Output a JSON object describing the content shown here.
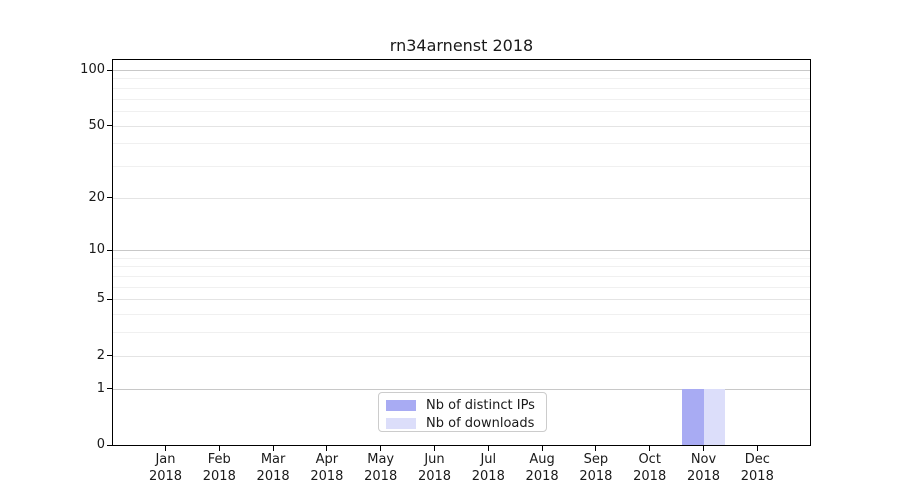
{
  "figure": {
    "background": "#ffffff",
    "text_color": "#1a1a1a"
  },
  "chart_data": {
    "type": "bar",
    "title": "rn34arnenst 2018",
    "categories": [
      "Jan 2018",
      "Feb 2018",
      "Mar 2018",
      "Apr 2018",
      "May 2018",
      "Jun 2018",
      "Jul 2018",
      "Aug 2018",
      "Sep 2018",
      "Oct 2018",
      "Nov 2018",
      "Dec 2018"
    ],
    "series": [
      {
        "name": "Nb of distinct IPs",
        "color": "#a8abf3",
        "values": [
          0,
          0,
          0,
          0,
          0,
          0,
          0,
          0,
          0,
          0,
          1,
          0
        ]
      },
      {
        "name": "Nb of downloads",
        "color": "#dcdefa",
        "values": [
          0,
          0,
          0,
          0,
          0,
          0,
          0,
          0,
          0,
          0,
          1,
          0
        ]
      }
    ],
    "yscale": "log1p",
    "ylim": [
      0,
      113
    ],
    "yticks": [
      0,
      1,
      2,
      5,
      10,
      20,
      50,
      100
    ],
    "yticks_minor": [
      3,
      4,
      6,
      7,
      8,
      9,
      30,
      40,
      60,
      70,
      80,
      90
    ],
    "grid": "horizontal-major-and-minor",
    "legend_position": "lower center",
    "colors": {
      "major_grid": "#c8c8c8",
      "mid_grid": "#e4e4e4",
      "minor_grid": "#f0f0f0",
      "spine": "#000000"
    }
  }
}
